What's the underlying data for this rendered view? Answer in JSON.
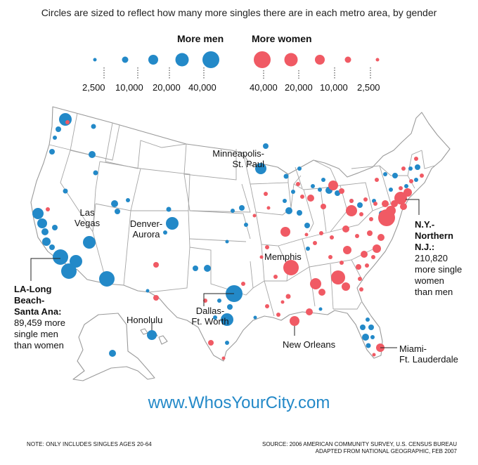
{
  "subtitle": "Circles are sized to reflect how many more singles there are in each metro area, by gender",
  "legend": {
    "men_heading": "More men",
    "women_heading": "More women",
    "men_sizes": [
      "2,500",
      "10,000",
      "20,000",
      "40,000"
    ],
    "women_sizes": [
      "40,000",
      "20,000",
      "10,000",
      "2,500"
    ],
    "men_color": "#2389c8",
    "women_color": "#f05a64"
  },
  "labels": {
    "minneapolis_1": "Minneapolis-",
    "minneapolis_2": "St. Paul",
    "las_vegas_1": "Las",
    "las_vegas_2": "Vegas",
    "denver_1": "Denver-",
    "denver_2": "Aurora",
    "memphis": "Memphis",
    "dallas_1": "Dallas-",
    "dallas_2": "Ft. Worth",
    "honolulu": "Honolulu",
    "new_orleans": "New Orleans",
    "miami_1": "Miami-",
    "miami_2": "Ft. Lauderdale"
  },
  "callouts": {
    "la": {
      "name_1": "LA-Long",
      "name_2": "Beach-",
      "name_3": "Santa Ana:",
      "value": "89,459 more",
      "text_1": "single men",
      "text_2": "than women"
    },
    "ny": {
      "name_1": "N.Y.-",
      "name_2": "Northern",
      "name_3": "N.J.:",
      "value": "210,820",
      "text_1": "more single",
      "text_2": "women",
      "text_3": "than men"
    }
  },
  "website": "www.WhosYourCity.com",
  "note": "NOTE: ONLY INCLUDES SINGLES AGES 20-64",
  "source_1": "SOURCE: 2006 AMERICAN COMMUNITY SURVEY, U.S. CENSUS BUREAU",
  "source_2": "ADAPTED FROM NATIONAL GEOGRAPHIC, FEB 2007"
}
